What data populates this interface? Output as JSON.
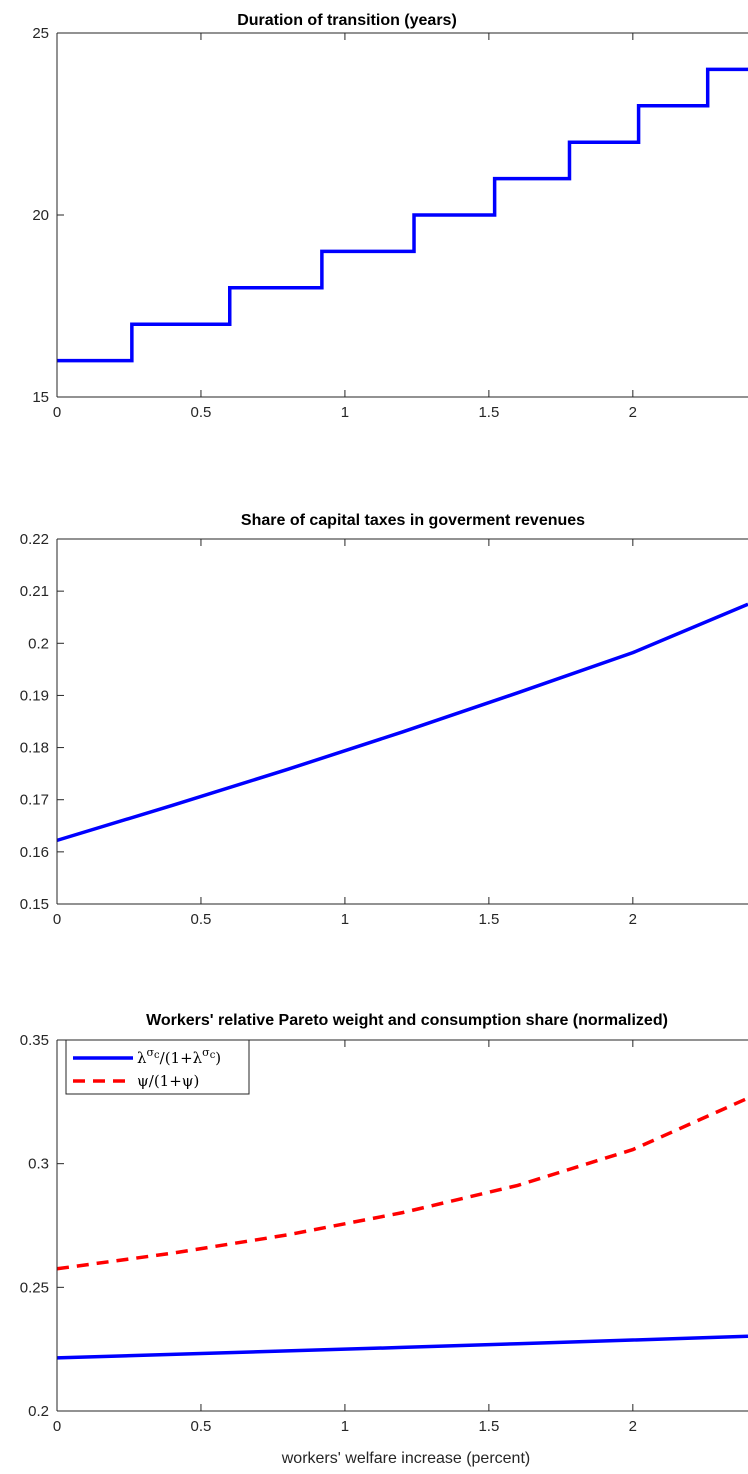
{
  "chart_data": [
    {
      "type": "line",
      "title": "Duration of transition (years)",
      "xlabel": "",
      "ylabel": "",
      "xlim": [
        0,
        2.4
      ],
      "ylim": [
        15,
        25
      ],
      "xticks": [
        "0",
        "0.5",
        "1",
        "1.5",
        "2"
      ],
      "yticks": [
        "15",
        "20",
        "25"
      ],
      "grid": false,
      "step": true,
      "series": [
        {
          "color": "#0000ff",
          "x": [
            0,
            0.26,
            0.26,
            0.6,
            0.6,
            0.92,
            0.92,
            1.24,
            1.24,
            1.52,
            1.52,
            1.78,
            1.78,
            2.02,
            2.02,
            2.26,
            2.26,
            2.4
          ],
          "y": [
            16,
            16,
            17,
            17,
            18,
            18,
            19,
            19,
            20,
            20,
            21,
            21,
            22,
            22,
            23,
            23,
            24,
            24
          ]
        }
      ]
    },
    {
      "type": "line",
      "title": "Share of capital taxes in goverment revenues",
      "xlabel": "",
      "ylabel": "",
      "xlim": [
        0,
        2.4
      ],
      "ylim": [
        0.15,
        0.22
      ],
      "xticks": [
        "0",
        "0.5",
        "1",
        "1.5",
        "2"
      ],
      "yticks": [
        "0.15",
        "0.16",
        "0.17",
        "0.18",
        "0.19",
        "0.2",
        "0.21",
        "0.22"
      ],
      "grid": false,
      "series": [
        {
          "color": "#0000ff",
          "x": [
            0,
            0.4,
            0.8,
            1.2,
            1.6,
            2.0,
            2.4
          ],
          "y": [
            0.1622,
            0.1689,
            0.1758,
            0.183,
            0.1905,
            0.1982,
            0.2075
          ]
        }
      ]
    },
    {
      "type": "line",
      "title": "Workers' relative Pareto weight and consumption share (normalized)",
      "xlabel": "workers' welfare increase (percent)",
      "ylabel": "",
      "xlim": [
        0,
        2.4
      ],
      "ylim": [
        0.2,
        0.35
      ],
      "xticks": [
        "0",
        "0.5",
        "1",
        "1.5",
        "2"
      ],
      "yticks": [
        "0.2",
        "0.25",
        "0.3",
        "0.35"
      ],
      "grid": false,
      "legend_position": "top-left",
      "series": [
        {
          "name": "λ^σc/(1+λ^σc)",
          "color": "#0000ff",
          "dash": "solid",
          "x": [
            0,
            0.4,
            0.8,
            1.2,
            1.6,
            2.0,
            2.4
          ],
          "y": [
            0.2215,
            0.2229,
            0.2243,
            0.2257,
            0.2272,
            0.2287,
            0.2302
          ]
        },
        {
          "name": "ψ/(1+ψ)",
          "color": "#ff0000",
          "dash": "dashed",
          "x": [
            0,
            0.4,
            0.8,
            1.2,
            1.6,
            2.0,
            2.4
          ],
          "y": [
            0.2575,
            0.2638,
            0.2712,
            0.2802,
            0.2912,
            0.3057,
            0.3265
          ]
        }
      ]
    }
  ]
}
